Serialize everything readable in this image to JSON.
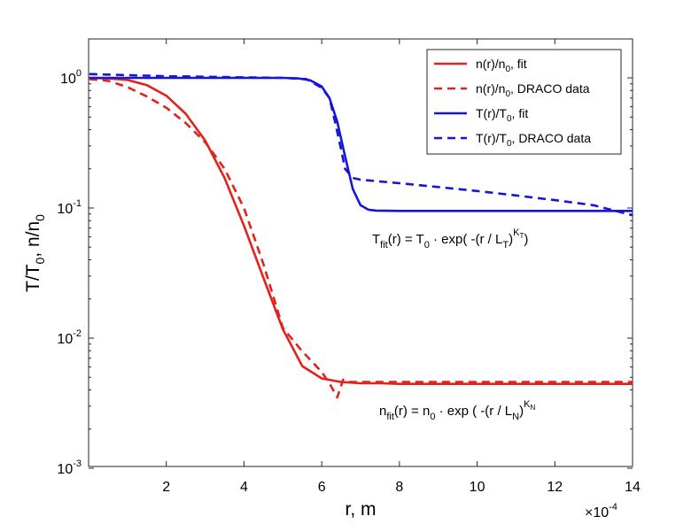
{
  "chart_data": {
    "type": "line",
    "title": "",
    "xlabel": "r, m",
    "ylabel": "T/T0, n/n0",
    "x_multiplier_label": "×10",
    "x_multiplier_exponent": "-4",
    "xlim": [
      0,
      14
    ],
    "ylim": [
      0.001,
      2
    ],
    "yscale": "log",
    "x_ticks": [
      2,
      4,
      6,
      8,
      10,
      12,
      14
    ],
    "x_tick_labels": [
      "2",
      "4",
      "6",
      "8",
      "10",
      "12",
      "14"
    ],
    "y_ticks": [
      1,
      0.1,
      0.01,
      0.001
    ],
    "y_tick_labels": [
      {
        "base": "10",
        "exp": "0"
      },
      {
        "base": "10",
        "exp": "-1"
      },
      {
        "base": "10",
        "exp": "-2"
      },
      {
        "base": "10",
        "exp": "-3"
      }
    ],
    "legend_position": "top-right",
    "series": [
      {
        "name": "n(r)/n0, fit",
        "color": "#e3231b",
        "dash": "solid",
        "x": [
          0.02,
          0.5,
          1.0,
          1.5,
          2.0,
          2.5,
          3.0,
          3.5,
          4.0,
          4.5,
          5.0,
          5.5,
          6.0,
          6.5,
          7.0,
          7.5,
          8.0,
          9.0,
          10.0,
          11.0,
          12.0,
          13.0,
          14.0
        ],
        "y": [
          1.0,
          0.99,
          0.965,
          0.88,
          0.73,
          0.53,
          0.33,
          0.17,
          0.073,
          0.029,
          0.0117,
          0.0061,
          0.0049,
          0.0046,
          0.0045,
          0.0045,
          0.00445,
          0.00445,
          0.00445,
          0.00445,
          0.00445,
          0.00445,
          0.00445
        ]
      },
      {
        "name": "n(r)/n0, DRACO data",
        "color": "#e3231b",
        "dash": "dashed",
        "x": [
          0.02,
          0.5,
          1.0,
          1.5,
          2.0,
          2.5,
          3.0,
          3.5,
          4.0,
          4.5,
          5.0,
          5.5,
          6.0,
          6.2,
          6.4,
          6.55,
          6.7,
          7.0,
          8.0,
          9.0,
          10.0,
          11.0,
          12.0,
          13.0,
          14.0
        ],
        "y": [
          0.98,
          0.95,
          0.85,
          0.72,
          0.59,
          0.45,
          0.32,
          0.2,
          0.1,
          0.037,
          0.012,
          0.0079,
          0.0055,
          0.0045,
          0.0035,
          0.0048,
          0.0046,
          0.0046,
          0.0046,
          0.0046,
          0.0046,
          0.0046,
          0.0046,
          0.0046,
          0.0046
        ]
      },
      {
        "name": "T(r)/T0, fit",
        "color": "#1616d8",
        "dash": "solid",
        "x": [
          0.02,
          1.0,
          2.0,
          3.0,
          4.0,
          5.0,
          5.4,
          5.7,
          6.0,
          6.2,
          6.4,
          6.6,
          6.8,
          7.0,
          7.2,
          7.4,
          7.6,
          8.0,
          9.0,
          10.0,
          11.0,
          12.0,
          13.0,
          14.0
        ],
        "y": [
          1.0,
          1.0,
          1.0,
          1.0,
          1.0,
          1.0,
          0.99,
          0.96,
          0.86,
          0.7,
          0.46,
          0.25,
          0.14,
          0.105,
          0.097,
          0.0955,
          0.0952,
          0.095,
          0.095,
          0.095,
          0.095,
          0.095,
          0.095,
          0.095
        ]
      },
      {
        "name": "T(r)/T0, DRACO data",
        "color": "#1616d8",
        "dash": "dashed",
        "x": [
          0.02,
          0.5,
          1.0,
          2.0,
          3.0,
          4.0,
          5.0,
          5.6,
          6.0,
          6.2,
          6.35,
          6.5,
          6.6,
          6.8,
          7.0,
          8.0,
          9.0,
          10.0,
          11.0,
          12.0,
          13.0,
          14.0
        ],
        "y": [
          1.07,
          1.06,
          1.05,
          1.03,
          1.02,
          1.01,
          1.0,
          0.98,
          0.84,
          0.7,
          0.45,
          0.28,
          0.2,
          0.17,
          0.165,
          0.155,
          0.145,
          0.135,
          0.125,
          0.115,
          0.105,
          0.088
        ]
      }
    ],
    "annotations": {
      "temperature_formula": {
        "lhs_main": "T",
        "lhs_sub": "fit",
        "lhs_rest": "(r) = T",
        "t0_sub": "0",
        "middle": " ·  exp( -(r / L",
        "lt_sub": "T",
        "close": ")",
        "exp_main": "K",
        "exp_sub": "T",
        "end": ")"
      },
      "density_formula": {
        "lhs_main": "n",
        "lhs_sub": "fit",
        "lhs_rest": "(r) = n",
        "n0_sub": "0",
        "middle": " · exp ( -(r / L",
        "ln_sub": "N",
        "close": ")",
        "exp_main": "K",
        "exp_sub": "N"
      }
    }
  }
}
